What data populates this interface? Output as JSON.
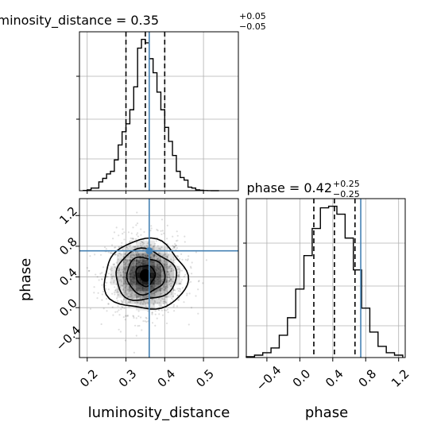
{
  "chart_data": [
    {
      "type": "histogram",
      "panel": "luminosity_distance-marginal",
      "title": {
        "param": "luminosity_distance",
        "median": "0.35",
        "plus": "+0.05",
        "minus": "−0.05"
      },
      "xlim": [
        0.18,
        0.59
      ],
      "bin_edges": [
        0.19,
        0.2,
        0.21,
        0.22,
        0.23,
        0.24,
        0.25,
        0.26,
        0.27,
        0.28,
        0.29,
        0.3,
        0.31,
        0.32,
        0.33,
        0.34,
        0.35,
        0.36,
        0.37,
        0.38,
        0.39,
        0.4,
        0.41,
        0.42,
        0.43,
        0.44,
        0.45,
        0.46,
        0.47,
        0.48,
        0.49,
        0.5,
        0.51,
        0.52,
        0.53,
        0.54
      ],
      "counts": [
        0.3,
        1,
        3,
        3,
        10,
        14,
        19,
        22,
        35,
        52,
        67,
        76,
        92,
        118,
        162,
        172,
        168,
        150,
        134,
        112,
        92,
        72,
        56,
        40,
        22,
        15,
        12,
        4,
        3,
        1,
        0.5,
        0.2,
        0.1,
        0,
        0
      ],
      "quantiles": [
        0.3,
        0.35,
        0.4
      ],
      "truth": 0.36
    },
    {
      "type": "histogram",
      "panel": "phase-marginal",
      "title": {
        "param": "phase",
        "median": "0.42",
        "plus": "+0.25",
        "minus": "−0.25"
      },
      "xlim": [
        -0.65,
        1.28
      ],
      "xticks": [
        -0.4,
        0.0,
        0.4,
        0.8,
        1.2
      ],
      "xtick_labels": [
        "−0.4",
        "0.0",
        "0.4",
        "0.8",
        "1.2"
      ],
      "xlabel": "phase",
      "bin_edges": [
        -0.65,
        -0.55,
        -0.45,
        -0.35,
        -0.25,
        -0.15,
        -0.05,
        0.05,
        0.15,
        0.25,
        0.35,
        0.45,
        0.55,
        0.65,
        0.75,
        0.85,
        0.95,
        1.05,
        1.15,
        1.25
      ],
      "counts": [
        1,
        3,
        6,
        12,
        28,
        50,
        86,
        128,
        162,
        188,
        190,
        180,
        150,
        110,
        62,
        32,
        14,
        6,
        3
      ],
      "quantiles": [
        0.17,
        0.42,
        0.67
      ],
      "truth": 0.74
    },
    {
      "type": "scatter-density",
      "panel": "luminosity_distance-vs-phase",
      "xlim": [
        0.18,
        0.59
      ],
      "ylim": [
        -0.65,
        1.42
      ],
      "xticks": [
        0.2,
        0.3,
        0.4,
        0.5
      ],
      "xtick_labels": [
        "0.2",
        "0.3",
        "0.4",
        "0.5"
      ],
      "yticks": [
        -0.4,
        0.0,
        0.4,
        0.8,
        1.2
      ],
      "ytick_labels": [
        "−0.4",
        "0.0",
        "0.4",
        "0.8",
        "1.2"
      ],
      "xlabel": "luminosity_distance",
      "ylabel": "phase",
      "center": [
        0.35,
        0.42
      ],
      "sigma": [
        0.05,
        0.25
      ],
      "truth": [
        0.36,
        0.74
      ],
      "contour_levels": [
        0.12,
        0.27,
        0.45,
        0.6
      ]
    }
  ],
  "colors": {
    "truth": "#4682b4",
    "hist": "#000000",
    "grid": "#b0b0b0",
    "points": "#000000"
  }
}
